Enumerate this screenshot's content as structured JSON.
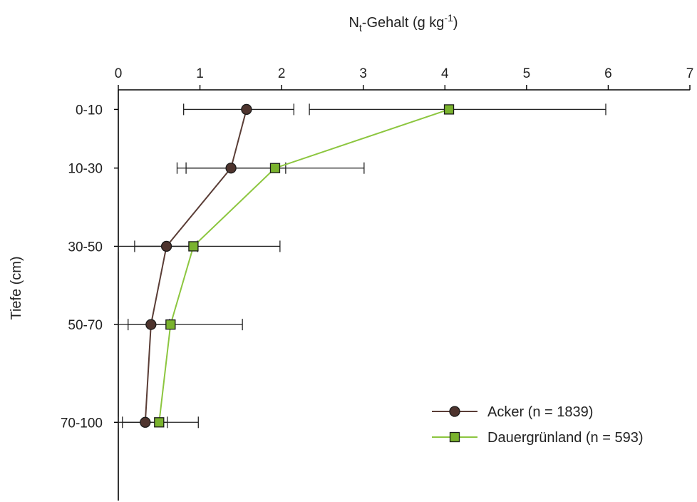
{
  "chart_data": {
    "type": "line",
    "orientation": "vertical-profile",
    "title": {
      "main": "N",
      "sub": "t",
      "mid": "-Gehalt (g kg",
      "sup": "-1",
      "end": ")"
    },
    "xlabel": "",
    "ylabel": "Tiefe (cm)",
    "x_axis_position": "top",
    "xlim": [
      0,
      7
    ],
    "x_ticks": [
      0,
      1,
      2,
      3,
      4,
      5,
      6,
      7
    ],
    "depth_range": [
      0,
      105
    ],
    "categories": [
      "0-10",
      "10-30",
      "30-50",
      "50-70",
      "70-100"
    ],
    "category_depths": [
      5,
      20,
      40,
      60,
      85
    ],
    "grid": false,
    "legend_position": "bottom-right",
    "series": [
      {
        "name": "Acker (n = 1839)",
        "marker": "circle",
        "line_color": "#5a3d36",
        "marker_color": "#4e342e",
        "values": [
          1.57,
          1.38,
          0.59,
          0.4,
          0.33
        ],
        "err_low": [
          0.8,
          0.72,
          0.2,
          0.12,
          0.05
        ],
        "err_high": [
          2.15,
          2.05,
          0.97,
          0.63,
          0.6
        ]
      },
      {
        "name": "Dauergrünland (n = 593)",
        "marker": "square",
        "line_color": "#8cc63f",
        "marker_color": "#7ab32e",
        "values": [
          4.05,
          1.92,
          0.92,
          0.64,
          0.5
        ],
        "err_low": [
          2.34,
          0.83,
          0.0,
          0.0,
          0.0
        ],
        "err_high": [
          5.97,
          3.01,
          1.98,
          1.52,
          0.98
        ]
      }
    ]
  }
}
